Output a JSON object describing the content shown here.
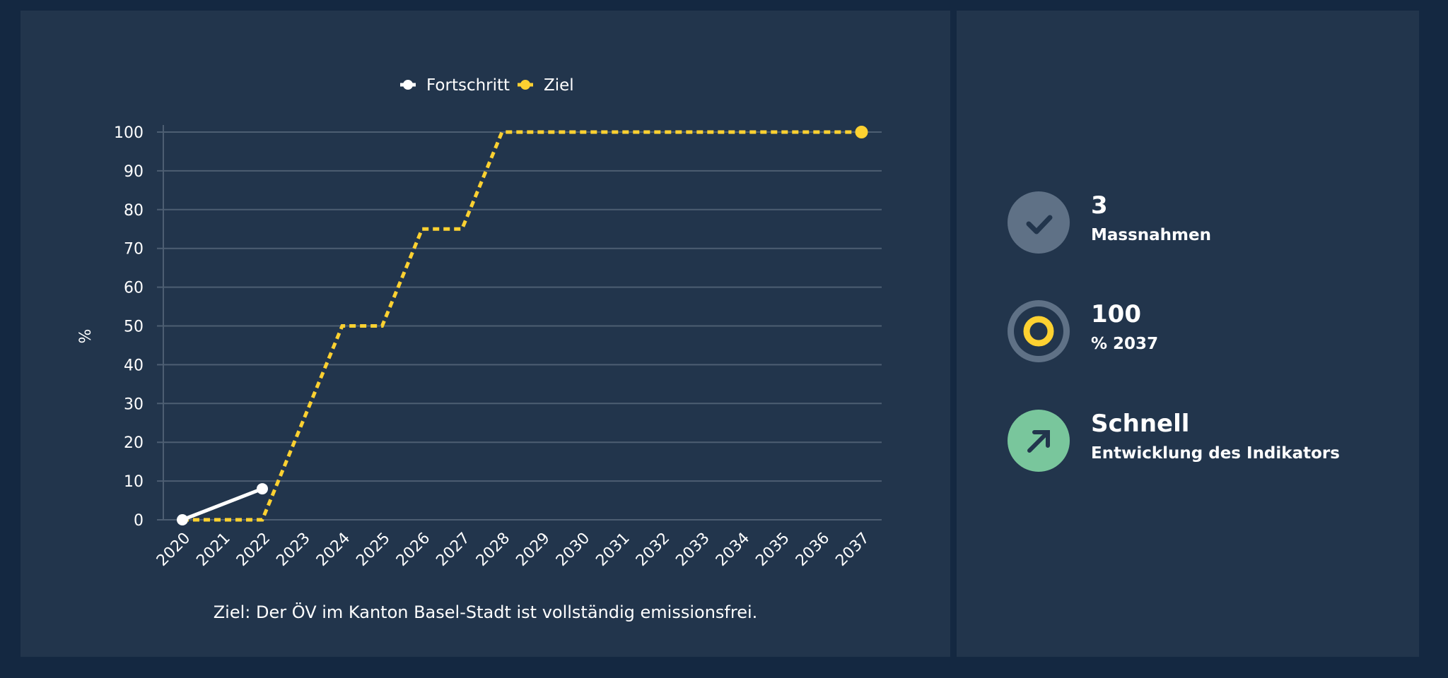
{
  "chart_data": {
    "type": "line",
    "title": "",
    "xlabel": "",
    "ylabel": "%",
    "ylim": [
      0,
      100
    ],
    "yticks": [
      0,
      10,
      20,
      30,
      40,
      50,
      60,
      70,
      80,
      90,
      100
    ],
    "grid": true,
    "legend_position": "top",
    "x": [
      "2020",
      "2021",
      "2022",
      "2023",
      "2024",
      "2025",
      "2026",
      "2027",
      "2028",
      "2029",
      "2030",
      "2031",
      "2032",
      "2033",
      "2034",
      "2035",
      "2036",
      "2037"
    ],
    "series": [
      {
        "name": "Fortschritt",
        "color": "#ffffff",
        "style": "solid",
        "points": [
          {
            "x": "2020",
            "y": 0
          },
          {
            "x": "2022",
            "y": 8
          }
        ]
      },
      {
        "name": "Ziel",
        "color": "#fdd131",
        "style": "dotted",
        "points": [
          {
            "x": "2020",
            "y": 0
          },
          {
            "x": "2021",
            "y": 0
          },
          {
            "x": "2022",
            "y": 0
          },
          {
            "x": "2023",
            "y": 25
          },
          {
            "x": "2024",
            "y": 50
          },
          {
            "x": "2025",
            "y": 50
          },
          {
            "x": "2026",
            "y": 75
          },
          {
            "x": "2027",
            "y": 75
          },
          {
            "x": "2028",
            "y": 100
          },
          {
            "x": "2029",
            "y": 100
          },
          {
            "x": "2030",
            "y": 100
          },
          {
            "x": "2031",
            "y": 100
          },
          {
            "x": "2032",
            "y": 100
          },
          {
            "x": "2033",
            "y": 100
          },
          {
            "x": "2034",
            "y": 100
          },
          {
            "x": "2035",
            "y": 100
          },
          {
            "x": "2036",
            "y": 100
          },
          {
            "x": "2037",
            "y": 100
          }
        ]
      }
    ],
    "caption": "Ziel: Der ÖV im Kanton Basel-Stadt ist vollständig emissionsfrei."
  },
  "legend": {
    "items": [
      {
        "label": "Fortschritt",
        "color": "#ffffff"
      },
      {
        "label": "Ziel",
        "color": "#fdd131"
      }
    ]
  },
  "stats": [
    {
      "value": "3",
      "label": "Massnahmen",
      "icon": "check-icon",
      "icon_bg": "#5f7186"
    },
    {
      "value": "100",
      "label": "% 2037",
      "icon": "target-icon",
      "icon_bg": "#5f7186",
      "accent": "#fdd131"
    },
    {
      "value": "Schnell",
      "label": "Entwicklung des Indikators",
      "icon": "arrow-up-right-icon",
      "icon_bg": "#79c69c"
    }
  ],
  "colors": {
    "background": "#142841",
    "panel": "#22354c",
    "grid": "#4d5e72",
    "target": "#fdd131",
    "progress": "#ffffff"
  }
}
